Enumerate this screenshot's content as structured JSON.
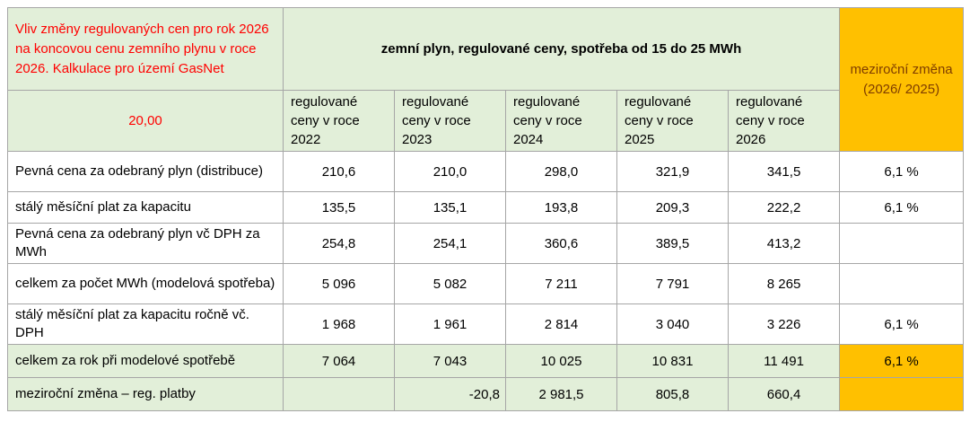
{
  "colors": {
    "light_green": "#E2EFD9",
    "orange": "#FFC000",
    "title_red": "#FF0000",
    "orange_header_text": "#7F3D00",
    "border_gray": "#A6A6A6"
  },
  "table": {
    "title": "Vliv změny regulovaných cen pro rok 2026 na koncovou cenu zemního plynu v roce 2026. Kalkulace pro území GasNet",
    "model_consumption": "20,00",
    "group_header": "zemní plyn, regulované ceny, spotřeba od 15 do 25 MWh",
    "yoy_header": "meziroční změna (2026/ 2025)",
    "year_headers": [
      "regulované ceny v roce 2022",
      "regulované ceny v roce 2023",
      "regulované ceny v roce 2024",
      "regulované ceny v roce 2025",
      "regulované ceny v roce 2026"
    ],
    "rows": [
      {
        "label": "Pevná cena za odebraný plyn (distribuce)",
        "values": [
          "210,6",
          "210,0",
          "298,0",
          "321,9",
          "341,5"
        ],
        "yoy": "6,1 %",
        "green": false,
        "yoy_orange": false
      },
      {
        "label": "stálý měsíční plat za kapacitu",
        "values": [
          "135,5",
          "135,1",
          "193,8",
          "209,3",
          "222,2"
        ],
        "yoy": "6,1 %",
        "green": false,
        "yoy_orange": false
      },
      {
        "label": "Pevná cena za odebraný plyn vč DPH za MWh",
        "values": [
          "254,8",
          "254,1",
          "360,6",
          "389,5",
          "413,2"
        ],
        "yoy": "",
        "green": false,
        "yoy_orange": false
      },
      {
        "label": "celkem za počet MWh (modelová spotřeba)",
        "values": [
          "5 096",
          "5 082",
          "7 211",
          "7 791",
          "8 265"
        ],
        "yoy": "",
        "green": false,
        "yoy_orange": false
      },
      {
        "label": "stálý měsíční plat za kapacitu ročně vč. DPH",
        "values": [
          "1 968",
          "1 961",
          "2 814",
          "3 040",
          "3 226"
        ],
        "yoy": "6,1 %",
        "green": false,
        "yoy_orange": false
      },
      {
        "label": "celkem za rok při modelové spotřebě",
        "values": [
          "7 064",
          "7 043",
          "10 025",
          "10 831",
          "11 491"
        ],
        "yoy": "6,1 %",
        "green": true,
        "yoy_orange": true
      },
      {
        "label": "meziroční změna – reg. platby",
        "values": [
          "",
          "-20,8",
          "2 981,5",
          "805,8",
          "660,4"
        ],
        "yoy": "",
        "green": true,
        "yoy_orange": true
      }
    ]
  }
}
